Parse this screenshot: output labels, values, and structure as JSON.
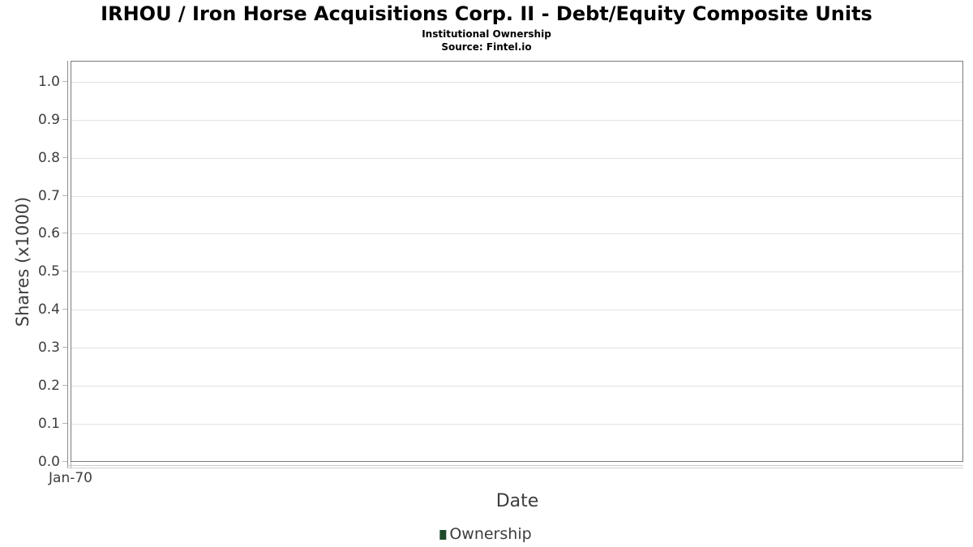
{
  "header": {
    "title": "IRHOU / Iron Horse Acquisitions Corp. II - Debt/Equity Composite Units",
    "subtitle": "Institutional Ownership",
    "source_line": "Source: Fintel.io"
  },
  "chart_data": {
    "type": "line",
    "title": "IRHOU / Iron Horse Acquisitions Corp. II - Debt/Equity Composite Units",
    "subtitle": "Institutional Ownership",
    "source": "Source: Fintel.io",
    "xlabel": "Date",
    "ylabel": "Shares (x1000)",
    "x_ticks": [
      "Jan-70"
    ],
    "y_ticks": [
      "1.0",
      "0.9",
      "0.8",
      "0.7",
      "0.6",
      "0.5",
      "0.4",
      "0.3",
      "0.2",
      "0.1",
      "0.0"
    ],
    "ylim": [
      0,
      1.055
    ],
    "grid": true,
    "legend_position": "bottom",
    "series": [
      {
        "name": "Ownership",
        "color": "#1f4b2c",
        "x": [],
        "values": []
      }
    ]
  },
  "legend": {
    "label": "Ownership",
    "marker_color": "#1f4b2c"
  },
  "colors": {
    "plot_border": "#7a7a7a",
    "axis_line": "#8c8c8c",
    "gridline": "#e2e2e2",
    "tick_mark": "#b4b4b4",
    "tick_label_text": "#3d3d3d",
    "title_text": "#000000",
    "legend_marker": "#1f4b2c"
  }
}
